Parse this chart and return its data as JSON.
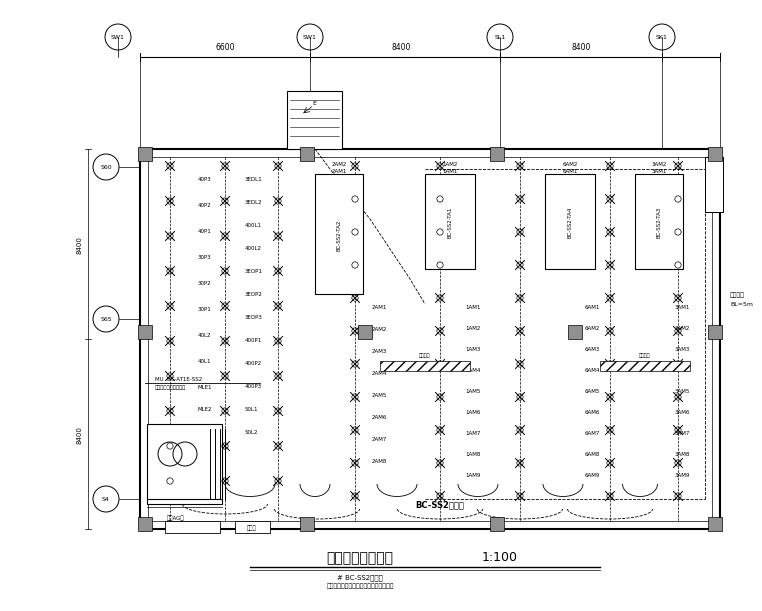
{
  "title": "变电所照明平面图",
  "scale": "1:100",
  "subtitle1": "# BC-SS2变电所",
  "subtitle2": "苏州中心内圈南二标段变电所照明平面图",
  "bg_color": "#ffffff",
  "top_circles": [
    [
      "SW1",
      108
    ],
    [
      "SW1",
      300
    ],
    [
      "SL1",
      490
    ],
    [
      "SK1",
      650
    ]
  ],
  "left_circles": [
    [
      "S60",
      158
    ],
    [
      "S65",
      310
    ],
    [
      "S4",
      490
    ]
  ],
  "dim_top": [
    "6600",
    "8400",
    "8400"
  ],
  "dim_left": [
    "8400",
    "8400"
  ],
  "panel_boxes": [
    [
      300,
      165,
      42,
      125,
      "BC-SS2-TA2"
    ],
    [
      420,
      165,
      42,
      100,
      "BC-SS2-TA1"
    ],
    [
      540,
      165,
      42,
      100,
      "BC-SS2-TA4"
    ],
    [
      626,
      165,
      38,
      95,
      "BC-SS2-TA3"
    ]
  ],
  "bottom_label": "BC-SS2变电所",
  "right_label": "九期侧壁\nBL=5m"
}
